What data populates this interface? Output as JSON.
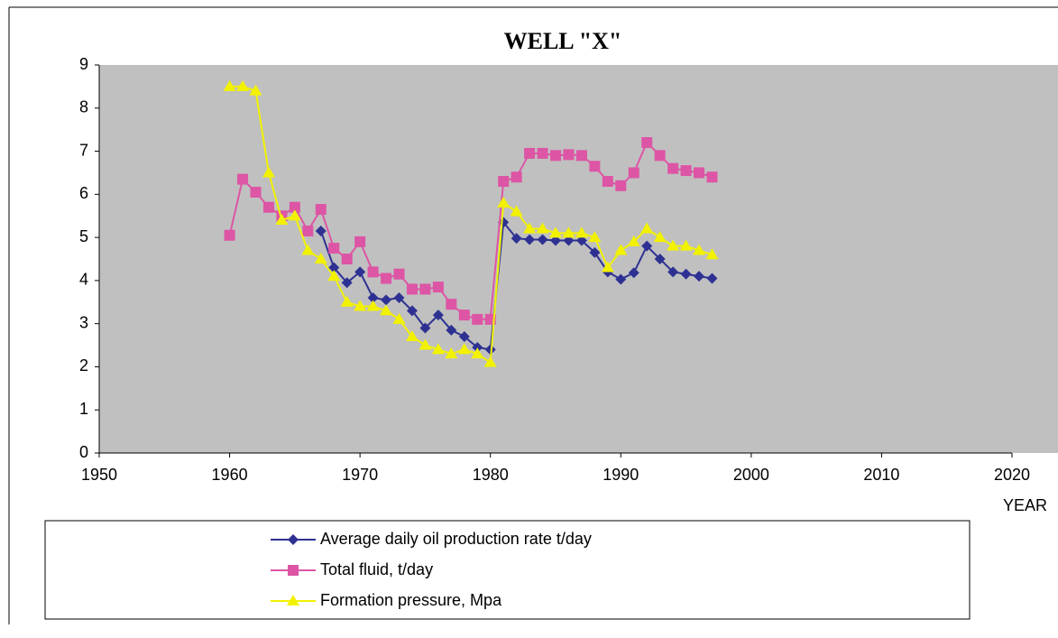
{
  "chart_data": {
    "type": "line",
    "title": "WELL \"X\"",
    "xlabel": "YEAR",
    "x": [
      1960,
      1961,
      1962,
      1963,
      1964,
      1965,
      1966,
      1967,
      1968,
      1969,
      1970,
      1971,
      1972,
      1973,
      1974,
      1975,
      1976,
      1977,
      1978,
      1979,
      1980,
      1981,
      1982,
      1983,
      1984,
      1985,
      1986,
      1987,
      1988,
      1989,
      1990,
      1991,
      1992,
      1993,
      1994,
      1995,
      1996,
      1997
    ],
    "series": [
      {
        "name": "Average daily oil production rate t/day",
        "color": "#2e3192",
        "marker": "diamond",
        "values": [
          null,
          null,
          null,
          null,
          null,
          null,
          null,
          5.15,
          4.3,
          3.95,
          4.2,
          3.6,
          3.55,
          3.6,
          3.3,
          2.9,
          3.2,
          2.85,
          2.7,
          2.45,
          2.4,
          5.35,
          4.98,
          4.95,
          4.95,
          4.93,
          4.93,
          4.93,
          4.65,
          4.2,
          4.03,
          4.18,
          4.8,
          4.5,
          4.2,
          4.15,
          4.1,
          4.05
        ]
      },
      {
        "name": "Total fluid, t/day",
        "color": "#dd55a5",
        "marker": "square",
        "values": [
          5.05,
          6.35,
          6.05,
          5.7,
          5.5,
          5.7,
          5.15,
          5.65,
          4.75,
          4.5,
          4.9,
          4.2,
          4.05,
          4.15,
          3.8,
          3.8,
          3.85,
          3.45,
          3.2,
          3.1,
          3.1,
          6.3,
          6.4,
          6.95,
          6.95,
          6.9,
          6.92,
          6.9,
          6.65,
          6.3,
          6.2,
          6.5,
          7.2,
          6.9,
          6.6,
          6.55,
          6.5,
          6.4
        ]
      },
      {
        "name": "Formation pressure, Mpa",
        "color": "#f2f200",
        "marker": "triangle",
        "values": [
          8.5,
          8.5,
          8.4,
          6.5,
          5.4,
          5.5,
          4.7,
          4.5,
          4.1,
          3.5,
          3.4,
          3.4,
          3.3,
          3.1,
          2.7,
          2.5,
          2.4,
          2.3,
          2.4,
          2.3,
          2.1,
          5.8,
          5.6,
          5.2,
          5.2,
          5.1,
          5.1,
          5.1,
          5.0,
          4.3,
          4.7,
          4.9,
          5.2,
          5.0,
          4.8,
          4.8,
          4.7,
          4.6
        ]
      }
    ],
    "xlim": [
      1950,
      2020
    ],
    "xticks": [
      1950,
      1960,
      1970,
      1980,
      1990,
      2000,
      2010,
      2020
    ],
    "ylim": [
      0,
      9
    ],
    "yticks": [
      0,
      1,
      2,
      3,
      4,
      5,
      6,
      7,
      8,
      9
    ],
    "plot_background": "#c0c0c0",
    "legend": "bottom"
  }
}
